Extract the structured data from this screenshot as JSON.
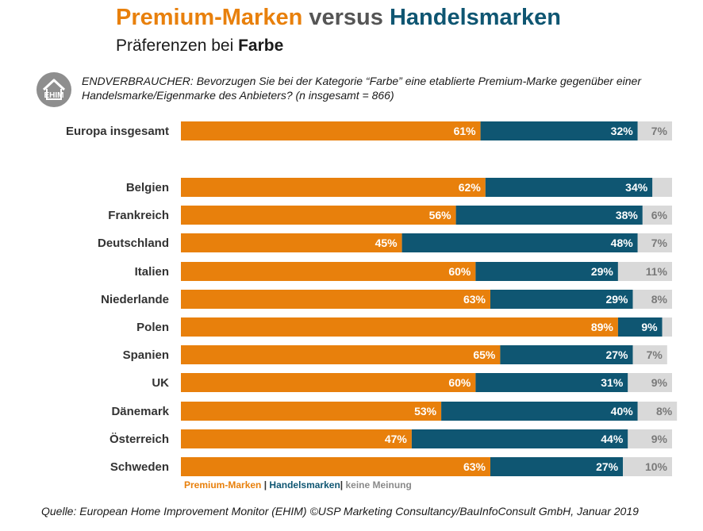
{
  "title": {
    "part1": "Premium-Marken",
    "part2": "versus",
    "part3": "Handelsmarken"
  },
  "subtitle": {
    "prefix": "Präferenzen bei",
    "bold": "Farbe"
  },
  "logo": {
    "text": "EHIM"
  },
  "question": "ENDVERBRAUCHER: Bevorzugen Sie bei der Kategorie “Farbe” eine etablierte Premium-Marke gegenüber einer Handelsmarke/Eigenmarke des Anbieters? (n insgesamt = 866)",
  "legend": {
    "premium": "Premium-Marken",
    "sep1": " | ",
    "handel": "Handelsmarken",
    "sep2": "| ",
    "none": "keine Meinung"
  },
  "source": "Quelle: European Home Improvement Monitor (EHIM) ©USP Marketing Consultancy/BauInfoConsult GmbH, Januar 2019",
  "colors": {
    "premium": "#E8800C",
    "handel": "#0F5672",
    "none": "#D9D9D9",
    "none_text": "#7a7a7a"
  },
  "chart_data": {
    "type": "bar",
    "orientation": "horizontal",
    "stacked": true,
    "categories": [
      "Europa insgesamt",
      "Belgien",
      "Frankreich",
      "Deutschland",
      "Italien",
      "Niederlande",
      "Polen",
      "Spanien",
      "UK",
      "Dänemark",
      "Österreich",
      "Schweden"
    ],
    "series": [
      {
        "name": "Premium-Marken",
        "values": [
          61,
          62,
          56,
          45,
          60,
          63,
          89,
          65,
          60,
          53,
          47,
          63
        ],
        "labels": [
          "61%",
          "62%",
          "56%",
          "45%",
          "60%",
          "63%",
          "89%",
          "65%",
          "60%",
          "53%",
          "47%",
          "63%"
        ]
      },
      {
        "name": "Handelsmarken",
        "values": [
          32,
          34,
          38,
          48,
          29,
          29,
          9,
          27,
          31,
          40,
          44,
          27
        ],
        "labels": [
          "32%",
          "34%",
          "38%",
          "48%",
          "29%",
          "29%",
          "9%",
          "27%",
          "31%",
          "40%",
          "44%",
          "27%"
        ]
      },
      {
        "name": "keine Meinung",
        "values": [
          7,
          4,
          6,
          7,
          11,
          8,
          2,
          7,
          9,
          8,
          9,
          10
        ],
        "labels": [
          "7%",
          "",
          "6%",
          "7%",
          "11%",
          "8%",
          "",
          "7%",
          "9%",
          "8%",
          "9%",
          "10%"
        ]
      }
    ],
    "xlim": [
      0,
      100
    ],
    "grid": false,
    "legend": "bottom"
  }
}
